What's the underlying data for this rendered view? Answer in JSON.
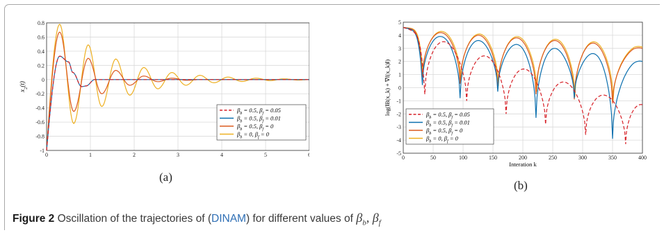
{
  "caption": {
    "label": "Figure 2",
    "text_before": "Oscillation of the trajectories of (",
    "ref": "DINAM",
    "text_after": ") for different values of ",
    "greek": "β_b, β_f"
  },
  "subcaptions": {
    "a": "(a)",
    "b": "(b)"
  },
  "colors": {
    "red": "#d61f26",
    "blue": "#0b6fae",
    "orange": "#dc5a1f",
    "yellow": "#eeb021"
  },
  "chart_data": [
    {
      "type": "line",
      "id": "a",
      "xlabel": "t",
      "ylabel": "x_2(t)",
      "xlim": [
        0,
        6
      ],
      "ylim": [
        -1,
        0.8
      ],
      "xticks": [
        "0",
        "1",
        "2",
        "3",
        "4",
        "5",
        "6"
      ],
      "yticks": [
        "-1",
        "-0.8",
        "-0.6",
        "-0.4",
        "-0.2",
        "0",
        "0.2",
        "0.4",
        "0.6",
        "0.8"
      ],
      "grid": true,
      "legend": "bottom-right",
      "series": [
        {
          "name": "β_b = 0.5, β_f = 0.05",
          "color": "#d61f26",
          "dash": true,
          "points": [
            [
              0,
              -1
            ],
            [
              0.3,
              0.33
            ],
            [
              0.5,
              0.25
            ],
            [
              0.6,
              0.1
            ],
            [
              0.8,
              -0.1
            ],
            [
              0.9,
              -0.09
            ],
            [
              1.1,
              0
            ],
            [
              6,
              0
            ]
          ]
        },
        {
          "name": "β_b = 0.5, β_f = 0.01",
          "color": "#0b6fae",
          "dash": false,
          "points": [
            [
              0,
              -1
            ],
            [
              0.3,
              0.33
            ],
            [
              0.5,
              0.25
            ],
            [
              0.6,
              0.1
            ],
            [
              0.8,
              -0.1
            ],
            [
              0.9,
              -0.09
            ],
            [
              1.1,
              0
            ],
            [
              6,
              0
            ]
          ]
        },
        {
          "name": "β_b = 0.5, β_f = 0",
          "color": "#dc5a1f",
          "dash": false,
          "points": [
            [
              0,
              -1
            ],
            [
              0.3,
              0.67
            ],
            [
              0.62,
              -0.45
            ],
            [
              0.95,
              0.3
            ],
            [
              1.26,
              -0.2
            ],
            [
              1.58,
              0.13
            ],
            [
              1.9,
              -0.08
            ],
            [
              2.22,
              0.05
            ],
            [
              2.54,
              -0.03
            ],
            [
              2.86,
              0.02
            ],
            [
              3.2,
              -0.01
            ],
            [
              3.5,
              0
            ],
            [
              6,
              0
            ]
          ]
        },
        {
          "name": "β_b = 0, β_f = 0",
          "color": "#eeb021",
          "dash": false,
          "points": [
            [
              0,
              -1
            ],
            [
              0.3,
              0.78
            ],
            [
              0.62,
              -0.62
            ],
            [
              0.95,
              0.49
            ],
            [
              1.26,
              -0.38
            ],
            [
              1.58,
              0.29
            ],
            [
              1.9,
              -0.22
            ],
            [
              2.22,
              0.17
            ],
            [
              2.54,
              -0.13
            ],
            [
              2.86,
              0.1
            ],
            [
              3.18,
              -0.08
            ],
            [
              3.5,
              0.06
            ],
            [
              3.82,
              -0.045
            ],
            [
              4.14,
              0.035
            ],
            [
              4.46,
              -0.027
            ],
            [
              4.78,
              0.02
            ],
            [
              5.1,
              -0.015
            ],
            [
              5.42,
              0.01
            ],
            [
              5.74,
              -0.007
            ],
            [
              6,
              0
            ]
          ]
        }
      ]
    },
    {
      "type": "line",
      "id": "b",
      "xlabel": "Interation k",
      "ylabel": "log(‖B(x_k) + ∇f(x_k)‖)",
      "xlim": [
        0,
        400
      ],
      "ylim": [
        -5,
        5
      ],
      "xticks": [
        "0",
        "50",
        "100",
        "150",
        "200",
        "250",
        "300",
        "350",
        "400"
      ],
      "yticks": [
        "-5",
        "-4",
        "-3",
        "-2",
        "-1",
        "0",
        "1",
        "2",
        "3",
        "4",
        "5"
      ],
      "grid": true,
      "legend": "bottom-left",
      "series": [
        {
          "name": "β_b = 0.5, β_f = 0.05",
          "color": "#d61f26",
          "dash": true,
          "dips": [
            [
              36,
              -0.5
            ],
            [
              106,
              -1.0
            ],
            [
              172,
              -2.0
            ],
            [
              238,
              -2.8
            ],
            [
              305,
              -3.6
            ],
            [
              372,
              -4.3
            ]
          ],
          "peaks": [
            [
              0,
              4.6
            ],
            [
              70,
              3.5
            ],
            [
              139,
              2.4
            ],
            [
              205,
              1.4
            ],
            [
              272,
              0.4
            ],
            [
              339,
              -0.6
            ],
            [
              400,
              -1.3
            ]
          ]
        },
        {
          "name": "β_b = 0.5, β_f = 0.01",
          "color": "#0b6fae",
          "dash": false,
          "dips": [
            [
              32,
              0.2
            ],
            [
              95,
              -0.8
            ],
            [
              158,
              -0.3
            ],
            [
              222,
              -2.3
            ],
            [
              286,
              -0.8
            ],
            [
              350,
              -3.9
            ]
          ],
          "peaks": [
            [
              0,
              4.6
            ],
            [
              63,
              3.9
            ],
            [
              126,
              3.6
            ],
            [
              190,
              3.3
            ],
            [
              254,
              3.0
            ],
            [
              318,
              2.6
            ],
            [
              385,
              2.2
            ],
            [
              400,
              2.0
            ]
          ]
        },
        {
          "name": "β_b = 0.5, β_f = 0",
          "color": "#dc5a1f",
          "dash": false,
          "dips": [
            [
              32,
              0.8
            ],
            [
              95,
              0.3
            ],
            [
              158,
              -0.1
            ],
            [
              222,
              -0.5
            ],
            [
              286,
              -0.9
            ],
            [
              350,
              -1.2
            ]
          ],
          "peaks": [
            [
              0,
              4.6
            ],
            [
              63,
              4.2
            ],
            [
              126,
              4.0
            ],
            [
              190,
              3.8
            ],
            [
              254,
              3.6
            ],
            [
              318,
              3.4
            ],
            [
              385,
              3.2
            ],
            [
              400,
              3.0
            ]
          ]
        },
        {
          "name": "β_b = 0, β_f = 0",
          "color": "#eeb021",
          "dash": false,
          "dips": [
            [
              33,
              1.0
            ],
            [
              96,
              0.5
            ],
            [
              159,
              0.1
            ],
            [
              223,
              -0.3
            ],
            [
              287,
              -0.7
            ],
            [
              351,
              -1.0
            ]
          ],
          "peaks": [
            [
              0,
              4.6
            ],
            [
              64,
              4.3
            ],
            [
              127,
              4.1
            ],
            [
              191,
              3.9
            ],
            [
              255,
              3.7
            ],
            [
              319,
              3.5
            ],
            [
              386,
              3.3
            ],
            [
              400,
              3.1
            ]
          ]
        }
      ]
    }
  ]
}
